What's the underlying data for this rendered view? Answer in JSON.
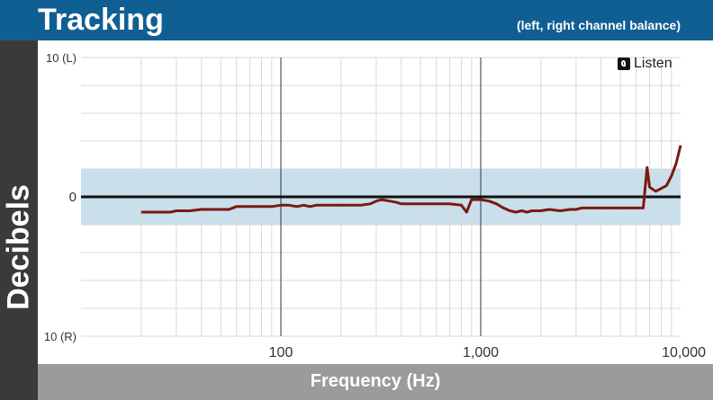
{
  "header": {
    "title": "Tracking",
    "subtitle": "(left, right channel balance)"
  },
  "logo": {
    "text": "Listen"
  },
  "colors": {
    "header_bg": "#0f5f93",
    "y_band_bg": "#3a3a3a",
    "x_band_bg": "#9b9b9b",
    "tolerance_band": "#c9dfec",
    "line": "#7a1a10"
  },
  "chart_data": {
    "type": "line",
    "title": "Tracking",
    "subtitle": "(left, right channel balance)",
    "xlabel": "Frequency (Hz)",
    "ylabel": "Decibels",
    "x_scale": "log",
    "xlim": [
      10,
      10000
    ],
    "ylim": [
      -10,
      10
    ],
    "x_ticks": [
      {
        "value": 100,
        "label": "100"
      },
      {
        "value": 1000,
        "label": "1,000"
      },
      {
        "value": 10000,
        "label": "10,000"
      }
    ],
    "y_ticks": [
      {
        "value": 10,
        "label": "10 (L)"
      },
      {
        "value": 0,
        "label": "0"
      },
      {
        "value": -10,
        "label": "10 (R)"
      }
    ],
    "band": [
      -2,
      2
    ],
    "grid": true,
    "series": [
      {
        "x": [
          20,
          25,
          28,
          30,
          35,
          40,
          50,
          55,
          60,
          70,
          80,
          90,
          100,
          110,
          120,
          130,
          140,
          150,
          170,
          200,
          250,
          280,
          300,
          320,
          350,
          380,
          400,
          450,
          500,
          600,
          700,
          800,
          850,
          900,
          1000,
          1100,
          1200,
          1300,
          1400,
          1500,
          1600,
          1700,
          1800,
          2000,
          2200,
          2500,
          2800,
          3000,
          3200,
          3500,
          3800,
          4000,
          4500,
          5000,
          5500,
          6000,
          6500,
          6800,
          7000,
          7500,
          8000,
          8500,
          9000,
          9500,
          10000
        ],
        "y": [
          -1.1,
          -1.1,
          -1.1,
          -1.0,
          -1.0,
          -0.9,
          -0.9,
          -0.9,
          -0.7,
          -0.7,
          -0.7,
          -0.7,
          -0.6,
          -0.6,
          -0.7,
          -0.6,
          -0.7,
          -0.6,
          -0.6,
          -0.6,
          -0.6,
          -0.5,
          -0.3,
          -0.2,
          -0.3,
          -0.4,
          -0.5,
          -0.5,
          -0.5,
          -0.5,
          -0.5,
          -0.6,
          -1.1,
          -0.2,
          -0.2,
          -0.3,
          -0.5,
          -0.8,
          -1.0,
          -1.1,
          -1.0,
          -1.1,
          -1.0,
          -1.0,
          -0.9,
          -1.0,
          -0.9,
          -0.9,
          -0.8,
          -0.8,
          -0.8,
          -0.8,
          -0.8,
          -0.8,
          -0.8,
          -0.8,
          -0.8,
          2.1,
          0.7,
          0.4,
          0.6,
          0.8,
          1.5,
          2.4,
          3.7
        ]
      }
    ]
  }
}
